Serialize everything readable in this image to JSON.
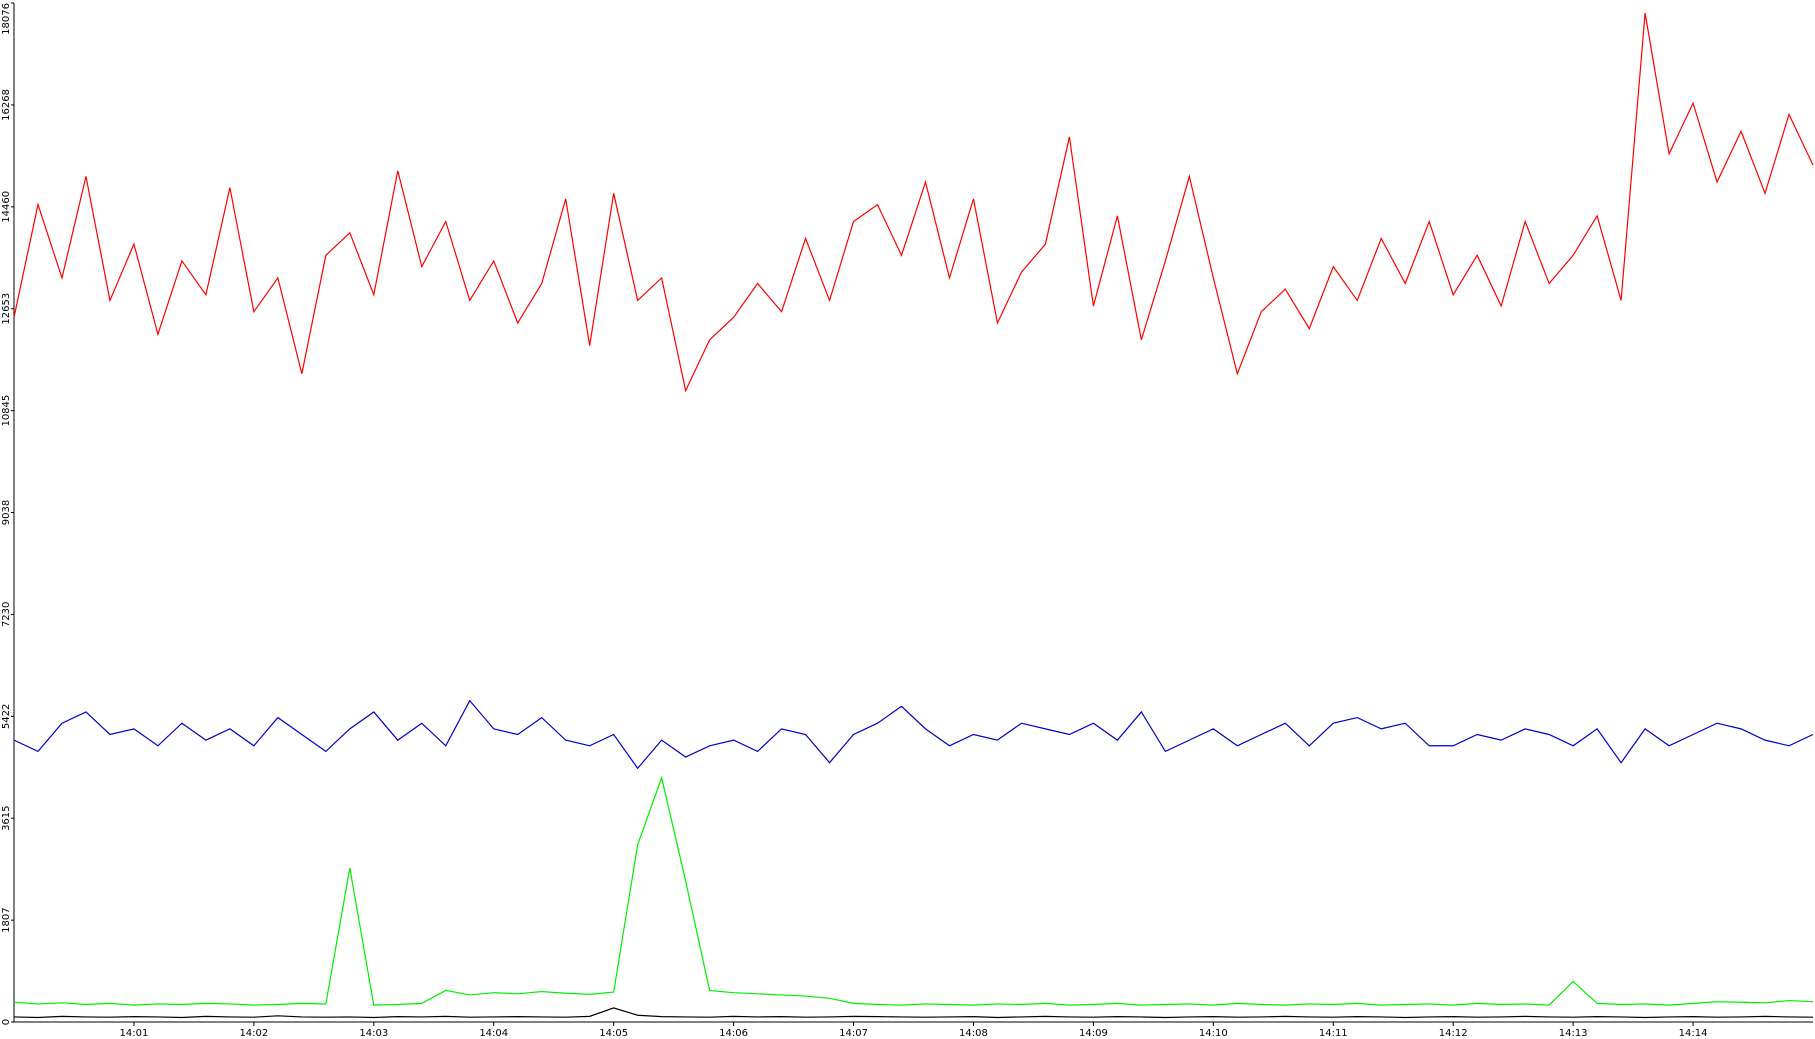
{
  "chart_data": {
    "type": "line",
    "x": [
      0,
      0.2,
      0.4,
      0.6,
      0.8,
      1,
      1.2,
      1.4,
      1.6,
      1.8,
      2,
      2.2,
      2.4,
      2.6,
      2.8,
      3,
      3.2,
      3.4,
      3.6,
      3.8,
      4,
      4.2,
      4.4,
      4.6,
      4.8,
      5,
      5.2,
      5.4,
      5.6,
      5.8,
      6,
      6.2,
      6.4,
      6.6,
      6.8,
      7,
      7.2,
      7.4,
      7.6,
      7.8,
      8,
      8.2,
      8.4,
      8.6,
      8.8,
      9,
      9.2,
      9.4,
      9.6,
      9.8,
      10,
      10.2,
      10.4,
      10.6,
      10.8,
      11,
      11.2,
      11.4,
      11.6,
      11.8,
      12,
      12.2,
      12.4,
      12.6,
      12.8,
      13,
      13.2,
      13.4,
      13.6,
      13.8,
      14,
      14.2,
      14.4,
      14.6,
      14.8,
      15
    ],
    "series": [
      {
        "color": "#ff0000",
        "values": [
          12500,
          14500,
          13200,
          15000,
          12800,
          13800,
          12200,
          13500,
          12900,
          14800,
          12600,
          13200,
          11500,
          13600,
          14000,
          12900,
          15100,
          13400,
          14200,
          12800,
          13500,
          12400,
          13100,
          14600,
          12000,
          14700,
          12800,
          13200,
          11200,
          12100,
          12500,
          13100,
          12600,
          13900,
          12800,
          14200,
          14500,
          13600,
          14900,
          13200,
          14600,
          12400,
          13300,
          13800,
          15700,
          12700,
          14300,
          12100,
          13500,
          15000,
          13200,
          11500,
          12600,
          13000,
          12300,
          13400,
          12800,
          13900,
          13100,
          14200,
          12900,
          13600,
          12700,
          14200,
          13100,
          13600,
          14300,
          12800,
          17900,
          15400,
          16300,
          14900,
          15800,
          14700,
          16100,
          15200
        ]
      },
      {
        "color": "#0000cc",
        "values": [
          5000,
          4800,
          5300,
          5500,
          5100,
          5200,
          4900,
          5300,
          5000,
          5200,
          4900,
          5400,
          5100,
          4800,
          5200,
          5500,
          5000,
          5300,
          4900,
          5700,
          5200,
          5100,
          5400,
          5000,
          4900,
          5100,
          4500,
          5000,
          4700,
          4900,
          5000,
          4800,
          5200,
          5100,
          4600,
          5100,
          5300,
          5600,
          5200,
          4900,
          5100,
          5000,
          5300,
          5200,
          5100,
          5300,
          5000,
          5500,
          4800,
          5000,
          5200,
          4900,
          5100,
          5300,
          4900,
          5300,
          5400,
          5200,
          5300,
          4900,
          4900,
          5100,
          5000,
          5200,
          5100,
          4900,
          5200,
          4600,
          5200,
          4900,
          5100,
          5300,
          5200,
          5000,
          4900,
          5100
        ]
      },
      {
        "color": "#00ee00",
        "values": [
          350,
          320,
          340,
          310,
          330,
          300,
          320,
          310,
          330,
          320,
          300,
          310,
          330,
          320,
          2732,
          300,
          310,
          330,
          560,
          480,
          520,
          500,
          540,
          510,
          490,
          530,
          3143,
          4334,
          2500,
          560,
          520,
          500,
          480,
          460,
          420,
          330,
          310,
          300,
          320,
          310,
          300,
          320,
          310,
          330,
          300,
          310,
          330,
          300,
          310,
          320,
          300,
          330,
          310,
          300,
          320,
          310,
          330,
          300,
          310,
          320,
          300,
          330,
          310,
          320,
          300,
          720,
          330,
          310,
          320,
          300,
          330,
          360,
          350,
          340,
          380,
          360
        ]
      },
      {
        "color": "#000000",
        "values": [
          90,
          80,
          100,
          90,
          85,
          95,
          90,
          80,
          100,
          90,
          85,
          110,
          90,
          85,
          90,
          80,
          95,
          90,
          100,
          85,
          90,
          95,
          90,
          85,
          100,
          250,
          120,
          95,
          90,
          85,
          100,
          90,
          95,
          85,
          90,
          100,
          95,
          90,
          85,
          90,
          95,
          80,
          90,
          100,
          90,
          85,
          95,
          90,
          80,
          90,
          95,
          85,
          90,
          100,
          90,
          85,
          95,
          90,
          80,
          90,
          95,
          85,
          90,
          100,
          90,
          85,
          95,
          90,
          80,
          90,
          95,
          85,
          90,
          100,
          90,
          85
        ]
      }
    ],
    "xlim": [
      0,
      15
    ],
    "ylim": [
      0,
      18076
    ],
    "xticks": [
      {
        "value": 1,
        "label": "14:01"
      },
      {
        "value": 2,
        "label": "14:02"
      },
      {
        "value": 3,
        "label": "14:03"
      },
      {
        "value": 4,
        "label": "14:04"
      },
      {
        "value": 5,
        "label": "14:05"
      },
      {
        "value": 6,
        "label": "14:06"
      },
      {
        "value": 7,
        "label": "14:07"
      },
      {
        "value": 8,
        "label": "14:08"
      },
      {
        "value": 9,
        "label": "14:09"
      },
      {
        "value": 10,
        "label": "14:10"
      },
      {
        "value": 11,
        "label": "14:11"
      },
      {
        "value": 12,
        "label": "14:12"
      },
      {
        "value": 13,
        "label": "14:13"
      },
      {
        "value": 14,
        "label": "14:14"
      }
    ],
    "yticks": [
      0,
      1807,
      3615,
      5422,
      7230,
      9038,
      10845,
      12653,
      14460,
      16268,
      18076
    ]
  }
}
